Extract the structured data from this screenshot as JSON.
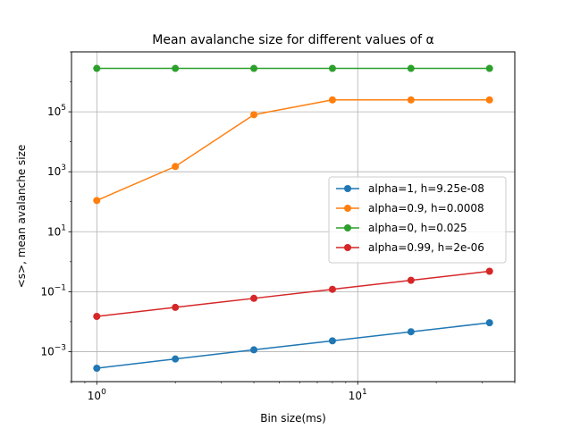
{
  "chart_data": {
    "type": "line",
    "title": "Mean avalanche size for different values of α",
    "xlabel": "Bin size(ms)",
    "ylabel": "<s>, mean avalanche size",
    "xscale": "log",
    "yscale": "log",
    "xlim": [
      0.8,
      40
    ],
    "ylim": [
      0.0001,
      10000000
    ],
    "grid": true,
    "legend_position": "center-right",
    "x_tick_labels": [
      {
        "value": 1,
        "base": "10",
        "exp": "0"
      },
      {
        "value": 10,
        "base": "10",
        "exp": "1"
      }
    ],
    "y_tick_labels": [
      {
        "value": 0.001,
        "base": "10",
        "exp": "−3"
      },
      {
        "value": 0.1,
        "base": "10",
        "exp": "−1"
      },
      {
        "value": 10,
        "base": "10",
        "exp": "1"
      },
      {
        "value": 1000,
        "base": "10",
        "exp": "3"
      },
      {
        "value": 100000,
        "base": "10",
        "exp": "5"
      }
    ],
    "x": [
      1,
      2,
      4,
      8,
      16,
      32
    ],
    "series": [
      {
        "name": "alpha=1, h=9.25e-08",
        "color": "#1f77b4",
        "values": [
          0.00028,
          0.00057,
          0.00115,
          0.0023,
          0.0046,
          0.0092
        ]
      },
      {
        "name": "alpha=0.9, h=0.0008",
        "color": "#ff7f0e",
        "values": [
          110,
          1500,
          80000,
          250000,
          250000,
          250000
        ]
      },
      {
        "name": "alpha=0, h=0.025",
        "color": "#2ca02c",
        "values": [
          2800000,
          2800000,
          2800000,
          2800000,
          2800000,
          2800000
        ]
      },
      {
        "name": "alpha=0.99, h=2e-06",
        "color": "#d62728",
        "values": [
          0.015,
          0.03,
          0.06,
          0.12,
          0.24,
          0.48
        ]
      }
    ]
  }
}
